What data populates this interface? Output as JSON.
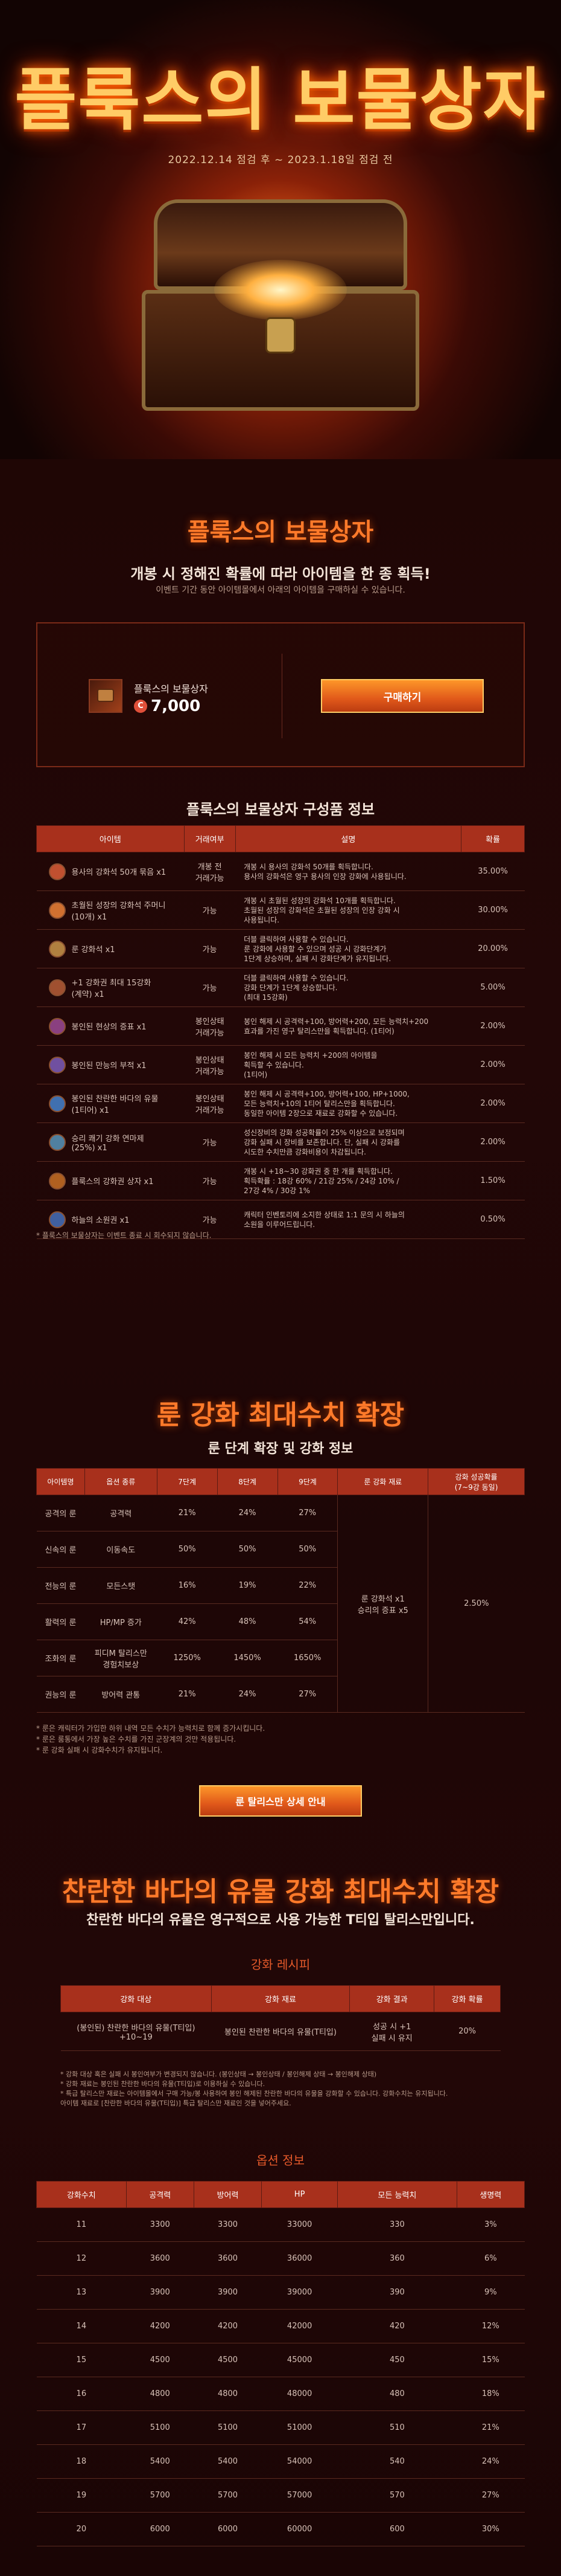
{
  "hero": {
    "title": "플룩스의 보물상자",
    "period": "2022.12.14 점검 후 ~ 2023.1.18일 점검 전"
  },
  "intro": {
    "title": "플룩스의 보물상자",
    "subtitle": "개봉 시 정해진 확률에 따라 아이템을 한 종 획득!",
    "note": "이벤트 기간 동안 아이템몰에서 아래의 아이템을 구매하실 수 있습니다."
  },
  "purchase": {
    "item_name": "플룩스의 보물상자",
    "coin_symbol": "C",
    "price": "7,000",
    "buy_label": "구매하기"
  },
  "composition": {
    "title": "플룩스의 보물상자 구성품 정보",
    "headers": [
      "아이템",
      "거래여부",
      "설명",
      "확률"
    ],
    "rows": [
      {
        "item": "용사의 강화석 50개 묶음 x1",
        "trade": "개봉 전\n거래가능",
        "desc": "개봉 시 용사의 강화석 50개를 획득합니다.\n용사의 강화석은 영구 용사의 인장 강화에 사용됩니다.",
        "prob": "35.00%",
        "color": "#c05030"
      },
      {
        "item": "초월된 성장의 강화석 주머니\n(10개) x1",
        "trade": "가능",
        "desc": "개봉 시 초월된 성장의 강화석 10개를 획득합니다.\n초월된 성장의 강화석은 초월된 성장의 인장 강화 시\n사용됩니다.",
        "prob": "30.00%",
        "color": "#d07030"
      },
      {
        "item": "룬 강화석 x1",
        "trade": "가능",
        "desc": "더블 클릭하여 사용할 수 있습니다.\n룬 강화에 사용할 수 있으며 성공 시 강화단계가\n1단계 상승하며, 실패 시 강화단계가 유지됩니다.",
        "prob": "20.00%",
        "color": "#b08040"
      },
      {
        "item": "+1 강화권 최대 15강화\n(계약) x1",
        "trade": "가능",
        "desc": "더블 클릭하여 사용할 수 있습니다.\n강화 단계가 1단계 상승합니다.\n(최대 15강화)",
        "prob": "5.00%",
        "color": "#a05030"
      },
      {
        "item": "봉인된 현상의 증표 x1",
        "trade": "봉인상태\n거래가능",
        "desc": "봉인 해제 시 공격력+100, 방어력+200, 모든 능력치+200\n효과를 가진 영구 탈리스만을 획득합니다. (1티어)",
        "prob": "2.00%",
        "color": "#8a4080"
      },
      {
        "item": "봉인된 만능의 부적 x1",
        "trade": "봉인상태\n거래가능",
        "desc": "봉인 해제 시 모든 능력치 +200의 아이템을\n획득할 수 있습니다.\n(1티어)",
        "prob": "2.00%",
        "color": "#7050a0"
      },
      {
        "item": "봉인된 찬란한 바다의 유물\n(1티어) x1",
        "trade": "봉인상태\n거래가능",
        "desc": "봉인 해제 시 공격력+100, 방어력+100, HP+1000,\n모든 능력치+10의 1티어 탈리스만을 획득합니다.\n동일한 아이템 2장으로 재료로 강화할 수 있습니다.",
        "prob": "2.00%",
        "color": "#4070b0"
      },
      {
        "item": "승리 쾌기 강화 연마제\n(25%) x1",
        "trade": "가능",
        "desc": "성신장비의 강화 성공확률이 25% 이상으로 보정되며\n강화 실패 시 장비를 보존합니다. 단, 실패 시 강화를\n시도한 수치만큼 강화비용이 차감됩니다.",
        "prob": "2.00%",
        "color": "#5080a0"
      },
      {
        "item": "플룩스의 강화권 상자 x1",
        "trade": "가능",
        "desc": "개봉 시 +18~30 강화권 중 한 개를 획득합니다.\n획득확률 : 18강 60% / 21강 25% / 24강 10% /\n27강 4% / 30강 1%",
        "prob": "1.50%",
        "color": "#b06020"
      },
      {
        "item": "하늘의 소원권 x1",
        "trade": "가능",
        "desc": "캐릭터 인벤토리에 소지한 상태로 1:1 문의 시 하늘의\n소원을 이루어드립니다.",
        "prob": "0.50%",
        "color": "#4060a0"
      }
    ],
    "footnote": "* 플룩스의 보물상자는 이벤트 종료 시 회수되지 않습니다."
  },
  "rune": {
    "title": "룬 강화 최대수치 확장",
    "subtitle": "룬 단계 확장 및 강화 정보",
    "headers": [
      "아이템명",
      "옵션 종류",
      "7단계",
      "8단계",
      "9단계",
      "룬 강화 재료",
      "강화 성공확률\n(7~9강 동일)"
    ],
    "rows": [
      {
        "name": "공격의 룬",
        "opt": "공격력",
        "s7": "21%",
        "s8": "24%",
        "s9": "27%"
      },
      {
        "name": "신속의 룬",
        "opt": "이동속도",
        "s7": "50%",
        "s8": "50%",
        "s9": "50%"
      },
      {
        "name": "전능의 룬",
        "opt": "모든스탯",
        "s7": "16%",
        "s8": "19%",
        "s9": "22%"
      },
      {
        "name": "활력의 룬",
        "opt": "HP/MP 증가",
        "s7": "42%",
        "s8": "48%",
        "s9": "54%"
      },
      {
        "name": "조화의 룬",
        "opt": "피디M 탈리스만\n경험치보상",
        "s7": "1250%",
        "s8": "1450%",
        "s9": "1650%"
      },
      {
        "name": "권능의 룬",
        "opt": "방어력 관통",
        "s7": "21%",
        "s8": "24%",
        "s9": "27%"
      }
    ],
    "material": "룬 강화석 x1\n승리의 증표 x5",
    "success": "2.50%",
    "notes": "* 룬은 캐릭터가 가입한 하위 내역 모든 수치가 능력치로 함께 증가시킵니다.\n* 룬은 룸통에서 가장 높은 수치를 가진 군장계의 것만 적용됩니다.\n* 룬 강화 실패 시 강화수치가 유지됩니다.",
    "detail_button": "룬 탈리스만 상세 안내"
  },
  "relic": {
    "title": "찬란한 바다의 유물 강화 최대수치 확장",
    "subtitle": "찬란한 바다의 유물은 영구적으로 사용 가능한 T티입 탈리스만입니다.",
    "recipe_title": "강화 레시피",
    "recipe_headers": [
      "강화 대상",
      "강화 재료",
      "강화 결과",
      "강화 확률"
    ],
    "recipe_row": {
      "target": "(봉인된) 찬란한 바다의 유물(T티입) +10~19",
      "material": "봉인된 찬란한 바다의 유물(T티입)",
      "result": "성공 시 +1\n실패 시 유지",
      "prob": "20%"
    },
    "recipe_notes": "* 강화 대상 혹은 실패 시 봉인여부가 변경되지 않습니다. (봉인상태 → 봉인상태 / 봉인해제 상태 → 봉인해제 상태)\n* 강화 재료는 봉인된 찬란한 바다의 유물(T티입)로 이용하실 수 있습니다.\n* 특급 탈리스만 재료는 아이템몰에서 구매 가능/봉 사용하여 봉인 해제된 찬란한 바다의 유물을 강화할 수 있습니다. 강화수치는 유지됩니다.\n  아이템 재료로 [찬란한 바다의 유물(T티입)] 특급 탈리스만 재료인 것을 넣어주세요.",
    "option_title": "옵션 정보",
    "option_headers": [
      "강화수치",
      "공격력",
      "방어력",
      "HP",
      "모든 능력치",
      "생명력"
    ],
    "option_rows": [
      [
        "11",
        "3300",
        "3300",
        "33000",
        "330",
        "3%"
      ],
      [
        "12",
        "3600",
        "3600",
        "36000",
        "360",
        "6%"
      ],
      [
        "13",
        "3900",
        "3900",
        "39000",
        "390",
        "9%"
      ],
      [
        "14",
        "4200",
        "4200",
        "42000",
        "420",
        "12%"
      ],
      [
        "15",
        "4500",
        "4500",
        "45000",
        "450",
        "15%"
      ],
      [
        "16",
        "4800",
        "4800",
        "48000",
        "480",
        "18%"
      ],
      [
        "17",
        "5100",
        "5100",
        "51000",
        "510",
        "21%"
      ],
      [
        "18",
        "5400",
        "5400",
        "54000",
        "540",
        "24%"
      ],
      [
        "19",
        "5700",
        "5700",
        "57000",
        "570",
        "27%"
      ],
      [
        "20",
        "6000",
        "6000",
        "60000",
        "600",
        "30%"
      ]
    ]
  }
}
